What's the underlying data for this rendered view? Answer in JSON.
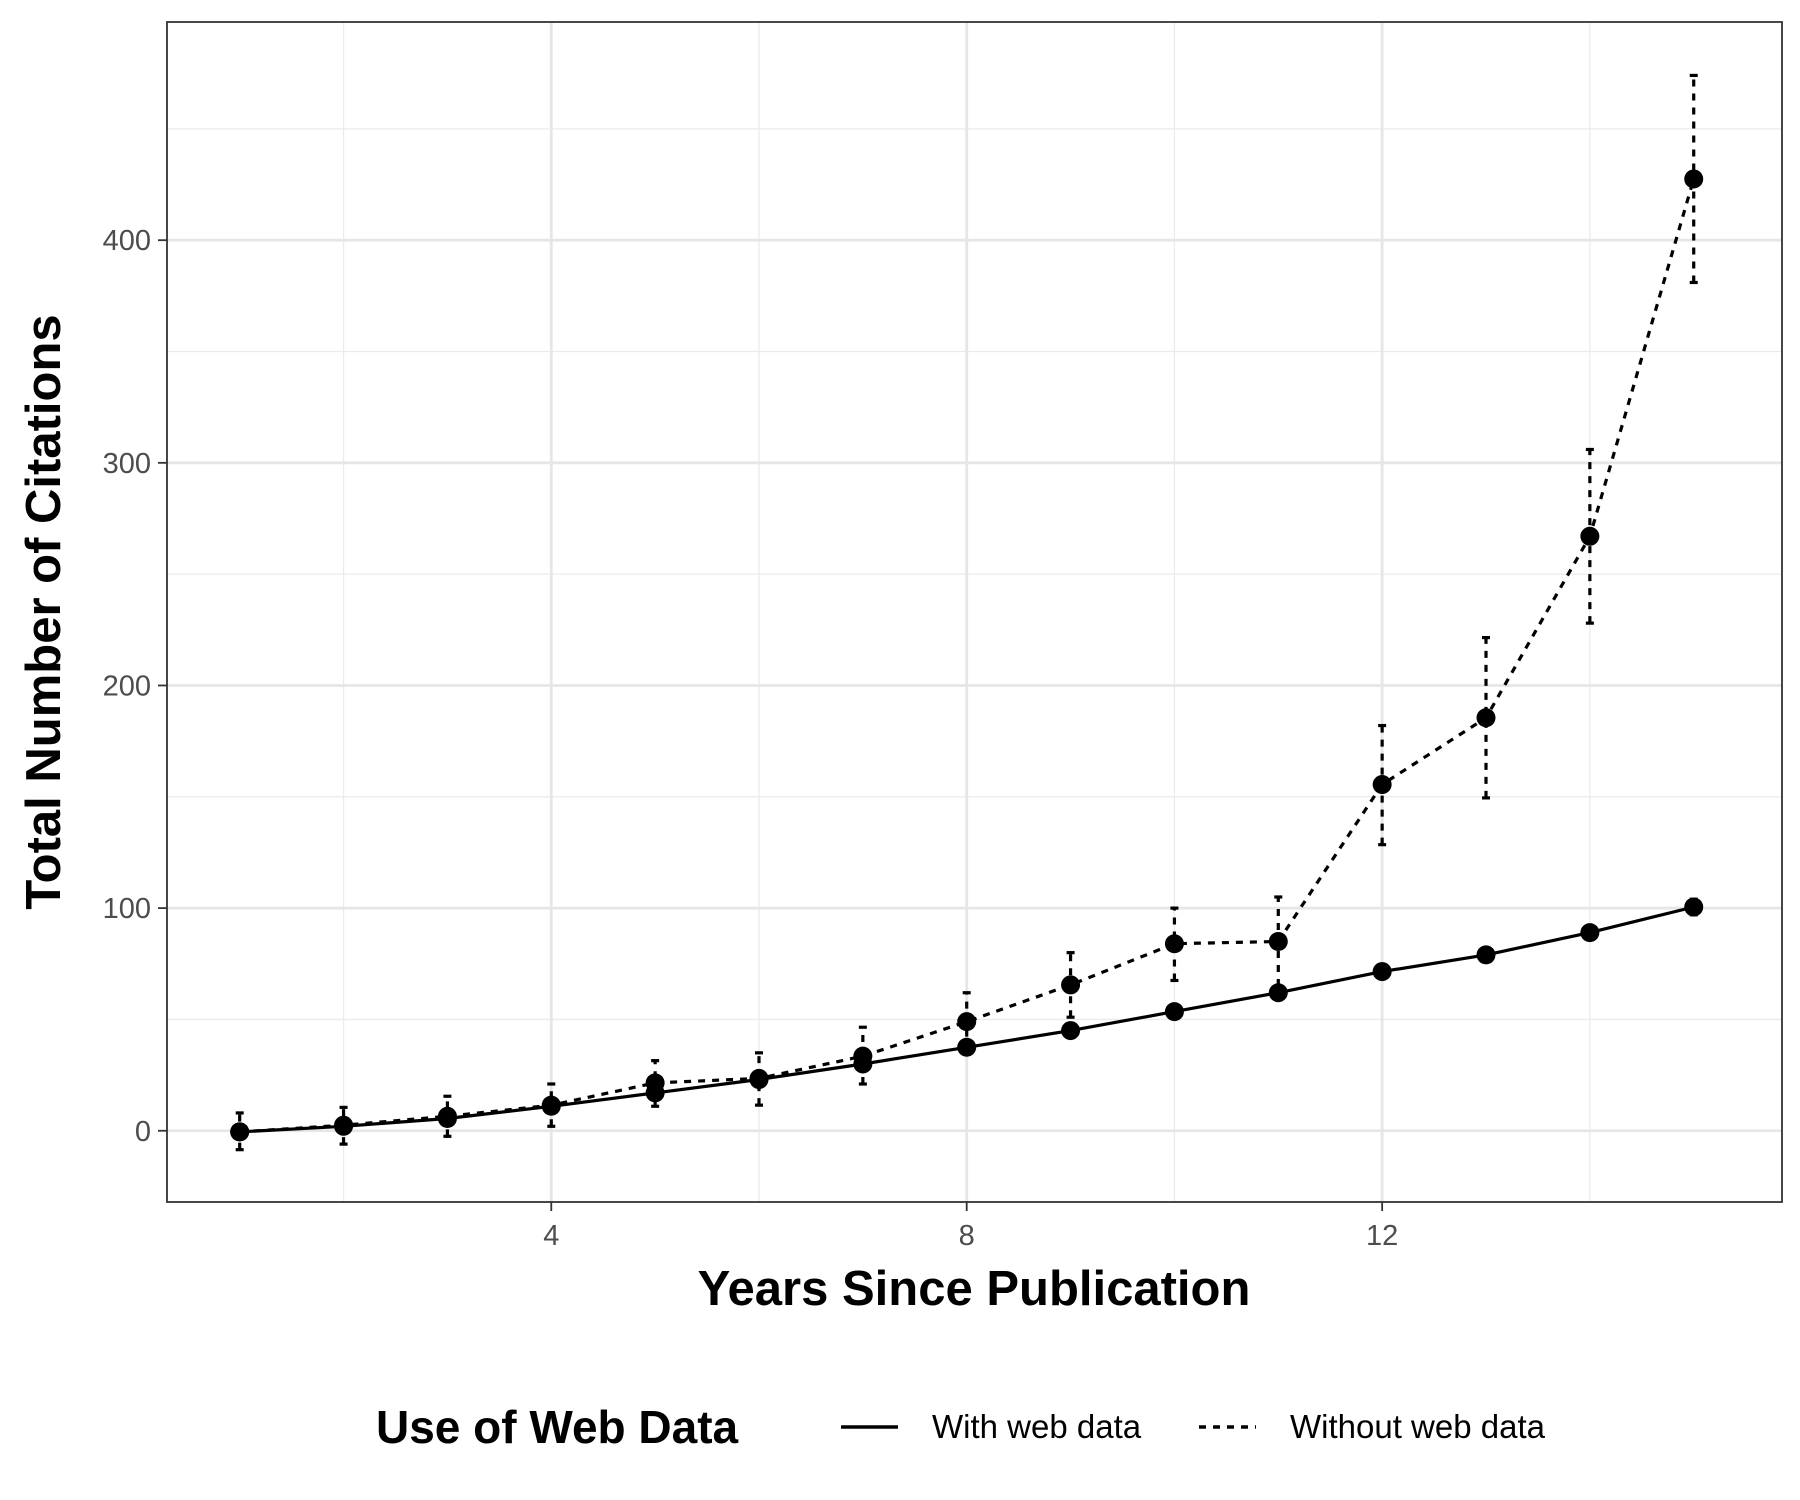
{
  "chart_data": {
    "type": "line",
    "title": "",
    "xlabel": "Years Since Publication",
    "ylabel": "Total Number of Citations",
    "xlim": [
      0.3,
      15.85
    ],
    "ylim": [
      -32,
      498
    ],
    "x_ticks": [
      4,
      8,
      12
    ],
    "y_ticks": [
      0,
      100,
      200,
      300,
      400
    ],
    "x_minor_ticks": [
      2,
      6,
      10,
      14
    ],
    "y_minor_ticks": [
      50,
      150,
      250,
      350,
      450
    ],
    "grid": true,
    "legend": {
      "title": "Use of Web Data",
      "position": "bottom",
      "entries": [
        "With web data",
        "Without web data"
      ]
    },
    "series": [
      {
        "name": "With web data",
        "line_style": "solid",
        "color": "#000000",
        "x": [
          1,
          2,
          3,
          4,
          5,
          6,
          7,
          8,
          9,
          10,
          11,
          12,
          13,
          14,
          15
        ],
        "y": [
          -0.5,
          2,
          5.5,
          11,
          17,
          23,
          30,
          37.5,
          45,
          53.5,
          62,
          71.5,
          79,
          89,
          100.5
        ],
        "err_low": [
          -3,
          0,
          3,
          8.5,
          14.5,
          20.5,
          27.5,
          35,
          42.5,
          51,
          59,
          69,
          76,
          86,
          97
        ],
        "err_high": [
          2,
          4,
          8,
          13.5,
          19.5,
          25.5,
          32.5,
          40,
          47.5,
          56,
          65,
          74,
          82,
          92,
          104
        ]
      },
      {
        "name": "Without web data",
        "line_style": "dashed",
        "color": "#000000",
        "x": [
          1,
          2,
          3,
          4,
          5,
          6,
          7,
          8,
          9,
          10,
          11,
          12,
          13,
          14,
          15
        ],
        "y": [
          -0.5,
          2.5,
          6.5,
          11.5,
          21.5,
          23.5,
          33.5,
          49,
          65.5,
          84,
          85,
          155.5,
          185.5,
          267,
          427.5
        ],
        "err_low": [
          -8.5,
          -6,
          -2.5,
          2,
          11,
          11.5,
          21,
          36,
          51,
          67.5,
          65,
          128.5,
          149.5,
          228,
          381
        ],
        "err_high": [
          8,
          10.5,
          15.5,
          21,
          31.5,
          35,
          46.5,
          62,
          80,
          100,
          105,
          182,
          221.5,
          306,
          474
        ]
      }
    ]
  }
}
